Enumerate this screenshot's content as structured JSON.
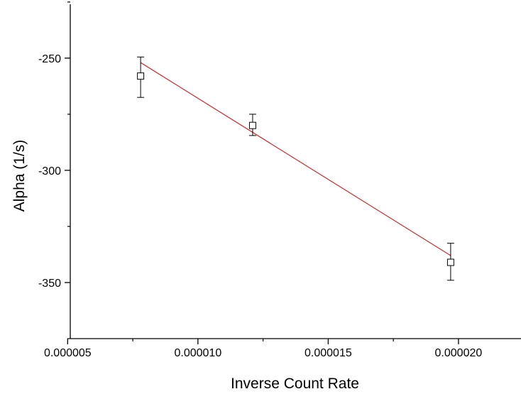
{
  "chart_data": {
    "type": "scatter",
    "title": "",
    "xlabel": "Inverse Count Rate",
    "ylabel": "Alpha (1/s)",
    "xlim": [
      5.1e-06,
      2.24e-05
    ],
    "ylim": [
      -375,
      -226
    ],
    "grid": false,
    "x_ticks": [
      {
        "value": 5e-06,
        "label": "0.000005"
      },
      {
        "value": 1e-05,
        "label": "0.000010"
      },
      {
        "value": 1.5e-05,
        "label": "0.000015"
      },
      {
        "value": 2e-05,
        "label": "0.000020"
      }
    ],
    "y_ticks": [
      {
        "value": -250,
        "label": "-250"
      },
      {
        "value": -300,
        "label": "-300"
      },
      {
        "value": -350,
        "label": "-350"
      }
    ],
    "y_minor_ticks": [
      -225,
      -275,
      -325,
      -375
    ],
    "x_minor_ticks": [
      7.5e-06,
      1.25e-05,
      1.75e-05,
      2.25e-05
    ],
    "series": [
      {
        "type": "scatter",
        "marker": "open-square",
        "color": "#000000",
        "points": [
          {
            "x": 7.8e-06,
            "y": -258,
            "err_low": 9.5,
            "err_high": 8.5
          },
          {
            "x": 1.21e-05,
            "y": -280,
            "err_low": 4.5,
            "err_high": 5
          },
          {
            "x": 1.97e-05,
            "y": -341,
            "err_low": 8,
            "err_high": 8.5
          }
        ]
      },
      {
        "type": "line",
        "fit": "linear",
        "color": "#d62728",
        "points": [
          {
            "x": 7.8e-06,
            "y": -252
          },
          {
            "x": 1.97e-05,
            "y": -338
          }
        ]
      }
    ]
  }
}
